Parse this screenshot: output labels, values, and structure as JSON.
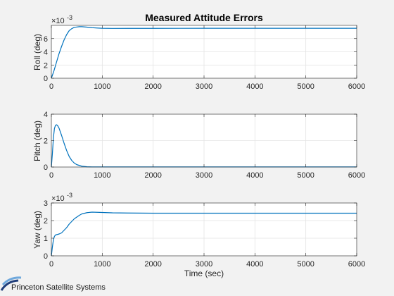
{
  "figure": {
    "title": "Measured Attitude Errors",
    "logo_text": "Princeton Satellite Systems",
    "colors": {
      "line": "#0072BD",
      "grid": "#e3e3e3",
      "axis": "#262626",
      "background": "#f2f2f2",
      "plot_background": "#ffffff",
      "logo_dark": "#1f3d7a",
      "logo_light": "#6fa8dc"
    }
  },
  "chart_data": [
    {
      "type": "line",
      "title": "Measured Attitude Errors",
      "xlabel": "",
      "ylabel": "Roll  (deg)",
      "xlim": [
        0,
        6000
      ],
      "ylim": [
        0,
        0.008
      ],
      "y_exponent_label": "×10",
      "y_exponent_power": "-3",
      "x_ticks": [
        0,
        1000,
        2000,
        3000,
        4000,
        5000,
        6000
      ],
      "x_tick_labels": [
        "0",
        "1000",
        "2000",
        "3000",
        "4000",
        "5000",
        "6000"
      ],
      "y_ticks": [
        0,
        0.002,
        0.004,
        0.006
      ],
      "y_tick_labels": [
        "0",
        "2",
        "4",
        "6"
      ],
      "grid": true,
      "series": [
        {
          "name": "Roll",
          "x": [
            0,
            50,
            100,
            150,
            200,
            250,
            300,
            350,
            400,
            450,
            500,
            550,
            600,
            700,
            800,
            900,
            1000,
            1200,
            1500,
            2000,
            3000,
            4000,
            5000,
            6000
          ],
          "y": [
            0,
            0.0011,
            0.0024,
            0.0037,
            0.0048,
            0.0058,
            0.0066,
            0.0072,
            0.0075,
            0.0077,
            0.00775,
            0.0078,
            0.0078,
            0.00773,
            0.00765,
            0.0076,
            0.00756,
            0.00754,
            0.00755,
            0.00755,
            0.00756,
            0.00756,
            0.00756,
            0.00756
          ]
        }
      ]
    },
    {
      "type": "line",
      "xlabel": "",
      "ylabel": "Pitch (deg)",
      "xlim": [
        0,
        6000
      ],
      "ylim": [
        0,
        4
      ],
      "x_ticks": [
        0,
        1000,
        2000,
        3000,
        4000,
        5000,
        6000
      ],
      "x_tick_labels": [
        "0",
        "1000",
        "2000",
        "3000",
        "4000",
        "5000",
        "6000"
      ],
      "y_ticks": [
        0,
        2,
        4
      ],
      "y_tick_labels": [
        "0",
        "2",
        "4"
      ],
      "grid": true,
      "series": [
        {
          "name": "Pitch",
          "x": [
            0,
            20,
            40,
            60,
            80,
            100,
            120,
            150,
            200,
            250,
            300,
            350,
            400,
            450,
            500,
            600,
            700,
            800,
            1000,
            2000,
            4000,
            6000
          ],
          "y": [
            0,
            1.0,
            2.2,
            2.9,
            3.15,
            3.2,
            3.15,
            2.95,
            2.4,
            1.8,
            1.25,
            0.8,
            0.5,
            0.3,
            0.18,
            0.06,
            0.02,
            0.01,
            0.01,
            0.01,
            0.01,
            0.01
          ]
        }
      ]
    },
    {
      "type": "line",
      "xlabel": "Time (sec)",
      "ylabel": "Yaw    (deg)",
      "xlim": [
        0,
        6000
      ],
      "ylim": [
        0,
        0.003
      ],
      "y_exponent_label": "×10",
      "y_exponent_power": "-3",
      "x_ticks": [
        0,
        1000,
        2000,
        3000,
        4000,
        5000,
        6000
      ],
      "x_tick_labels": [
        "0",
        "1000",
        "2000",
        "3000",
        "4000",
        "5000",
        "6000"
      ],
      "y_ticks": [
        0,
        0.001,
        0.002,
        0.003
      ],
      "y_tick_labels": [
        "0",
        "1",
        "2",
        "3"
      ],
      "grid": true,
      "series": [
        {
          "name": "Yaw",
          "x": [
            0,
            20,
            40,
            60,
            80,
            100,
            130,
            160,
            200,
            250,
            300,
            350,
            400,
            450,
            500,
            550,
            600,
            700,
            800,
            1000,
            1200,
            1500,
            2000,
            3000,
            4000,
            5000,
            6000
          ],
          "y": [
            0,
            0.0005,
            0.0009,
            0.0011,
            0.00118,
            0.0012,
            0.00122,
            0.00125,
            0.0013,
            0.00145,
            0.0016,
            0.0018,
            0.00195,
            0.0021,
            0.0022,
            0.0023,
            0.00238,
            0.00245,
            0.00248,
            0.00246,
            0.00244,
            0.00243,
            0.00242,
            0.00242,
            0.00242,
            0.00242,
            0.00242
          ]
        }
      ]
    }
  ]
}
